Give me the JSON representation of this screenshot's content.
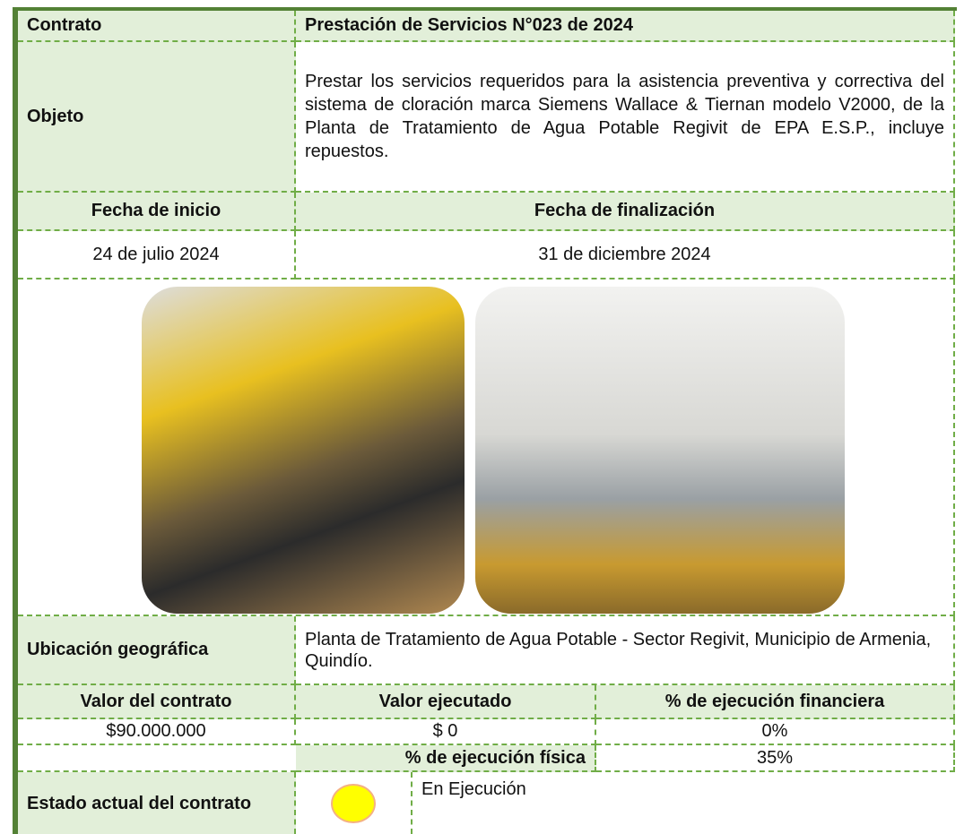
{
  "contrato": {
    "label": "Contrato",
    "value": "Prestación de Servicios N°023 de 2024"
  },
  "objeto": {
    "label": "Objeto",
    "value": "Prestar los servicios requeridos para la asistencia preventiva y correctiva del sistema de cloración marca Siemens Wallace & Tiernan modelo V2000, de la Planta de Tratamiento de Agua Potable Regivit de EPA E.S.P., incluye repuestos."
  },
  "fechas": {
    "inicio_label": "Fecha de inicio",
    "fin_label": "Fecha de finalización",
    "inicio": "24 de julio 2024",
    "fin": "31 de diciembre 2024"
  },
  "ubicacion": {
    "label": "Ubicación geográfica",
    "value": "Planta de Tratamiento de Agua Potable - Sector Regivit, Municipio de Armenia, Quindío."
  },
  "valores": {
    "valor_contrato_label": "Valor del contrato",
    "valor_ejecutado_label": "Valor ejecutado",
    "ejecucion_financiera_label": "% de ejecución financiera",
    "valor_contrato": "$90.000.000",
    "valor_ejecutado": "$ 0",
    "ejecucion_financiera": "0%",
    "ejecucion_fisica_label": "% de ejecución física",
    "ejecucion_fisica": "35%"
  },
  "estado": {
    "label": "Estado actual del contrato",
    "value": "En Ejecución"
  }
}
